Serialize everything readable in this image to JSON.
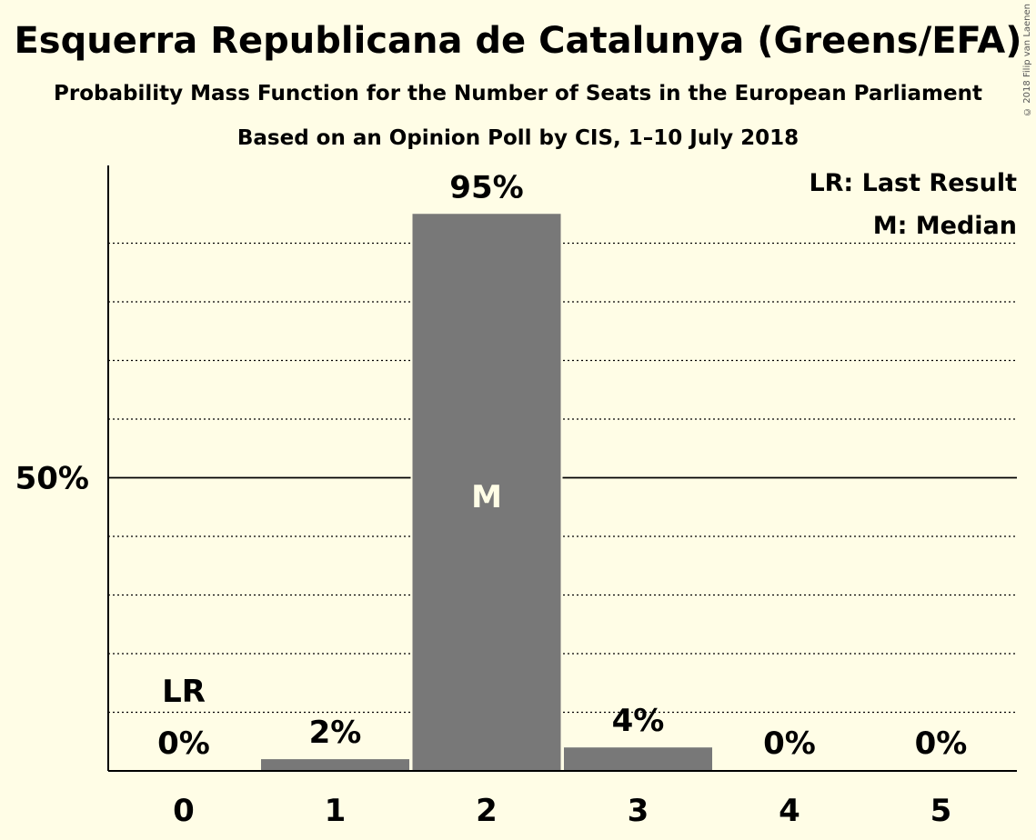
{
  "title": "Esquerra Republicana de Catalunya (Greens/EFA)",
  "subtitle": "Probability Mass Function for the Number of Seats in the European Parliament",
  "subtitle2": "Based on an Opinion Poll by CIS, 1–10 July 2018",
  "copyright": "© 2018 Filip van Laenen",
  "legend": {
    "last_result": "LR: Last Result",
    "median": "M: Median"
  },
  "colors": {
    "background": "#fffde6",
    "bar": "#787878",
    "median_label": "#fffde6"
  },
  "chart_data": {
    "type": "bar",
    "categories": [
      "0",
      "1",
      "2",
      "3",
      "4",
      "5"
    ],
    "values": [
      0,
      2,
      95,
      4,
      0,
      0
    ],
    "value_labels": [
      "0%",
      "2%",
      "95%",
      "4%",
      "0%",
      "0%"
    ],
    "ylim": [
      0,
      100
    ],
    "y_ticks": [
      {
        "value": 50,
        "label": "50%"
      }
    ],
    "gridlines": [
      10,
      20,
      30,
      40,
      60,
      70,
      80,
      90
    ],
    "last_result": {
      "category": "0",
      "label": "LR"
    },
    "median": {
      "category": "2",
      "label": "M"
    },
    "legend_position": "top-right"
  }
}
